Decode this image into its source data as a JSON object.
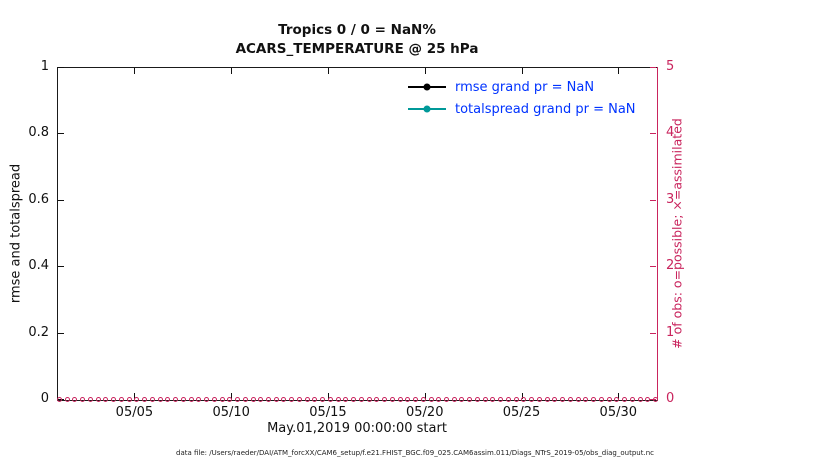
{
  "title": {
    "line1": "Tropics 0 / 0 = NaN%",
    "line2": "ACARS_TEMPERATURE @ 25 hPa"
  },
  "axes": {
    "left": {
      "label": "rmse and totalspread",
      "ticks": [
        "0",
        "0.2",
        "0.4",
        "0.6",
        "0.8",
        "1"
      ],
      "range": [
        0,
        1
      ],
      "color": "#111111"
    },
    "right": {
      "label": "# of obs: o=possible; ×=assimilated",
      "ticks": [
        "0",
        "1",
        "2",
        "3",
        "4",
        "5"
      ],
      "range": [
        0,
        5
      ],
      "color": "#c9245d"
    },
    "x": {
      "ticks": [
        "05/05",
        "05/10",
        "05/15",
        "05/20",
        "05/25",
        "05/30"
      ],
      "tick_days": [
        4,
        9,
        14,
        19,
        24,
        29
      ],
      "span_days": 31,
      "label": "May.01,2019 00:00:00 start"
    }
  },
  "legend": {
    "text_color": "#0033ff",
    "items": [
      {
        "label": "rmse grand pr = NaN",
        "color": "#000000"
      },
      {
        "label": "totalspread grand pr = NaN",
        "color": "#009999"
      }
    ]
  },
  "footer": "data file: /Users/raeder/DAI/ATM_forcXX/CAM6_setup/f.e21.FHIST_BGC.f09_025.CAM6assim.011/Diags_NTrS_2019-05/obs_diag_output.nc",
  "chart_data": {
    "type": "line",
    "title": "Tropics 0 / 0 = NaN% — ACARS_TEMPERATURE @ 25 hPa",
    "xlabel": "May.01,2019 00:00:00 start",
    "ylabel_left": "rmse and totalspread",
    "ylabel_right": "# of obs: o=possible; ×=assimilated",
    "x_range": [
      "2019-05-01 00:00",
      "2019-06-01 00:00"
    ],
    "x_tick_labels": [
      "05/05",
      "05/10",
      "05/15",
      "05/20",
      "05/25",
      "05/30"
    ],
    "ylim_left": [
      0,
      1
    ],
    "ylim_right": [
      0,
      5
    ],
    "grid": false,
    "legend_position": "inside-top-right",
    "series": [
      {
        "name": "rmse grand pr = NaN",
        "axis": "left",
        "marker": "filled-circle",
        "values": "all NaN — nothing plotted"
      },
      {
        "name": "totalspread grand pr = NaN",
        "axis": "left",
        "marker": "filled-circle",
        "values": "all NaN — nothing plotted"
      },
      {
        "name": "# of obs possible (o)",
        "axis": "right",
        "marker": "o",
        "constant_value": 0,
        "note": "0 at every time step from May 01 to May 31, 2019 (row of circles along y=0)"
      },
      {
        "name": "# of obs assimilated (×)",
        "axis": "right",
        "marker": "×",
        "constant_value": 0,
        "note": "0 at every time step, overlapping the possible markers"
      }
    ]
  }
}
